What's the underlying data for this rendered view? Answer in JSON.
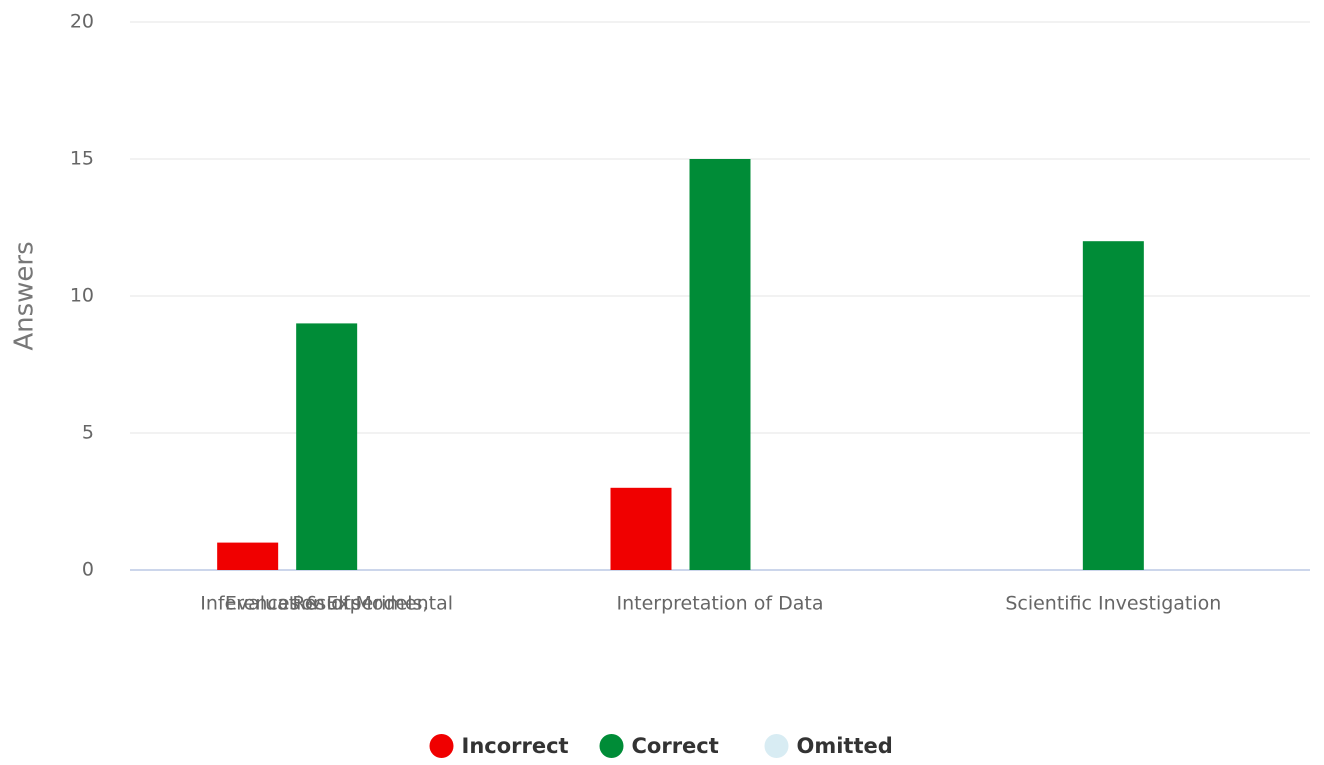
{
  "chart_data": {
    "type": "bar",
    "y_axis_label": "Answers",
    "categories": [
      [
        "Evaluation of Models,",
        "Inferences & Experimental",
        "Results"
      ],
      "Interpretation of Data",
      "Scientific Investigation"
    ],
    "series": [
      {
        "name": "Incorrect",
        "color": "#f00000",
        "values": [
          1,
          3,
          0
        ]
      },
      {
        "name": "Correct",
        "color": "#008c37",
        "values": [
          9,
          15,
          12
        ]
      },
      {
        "name": "Omitted",
        "color": "#d8ecf3",
        "values": [
          0,
          0,
          0
        ]
      }
    ],
    "ylim": [
      0,
      20
    ],
    "yticks": [
      0,
      5,
      10,
      15,
      20
    ],
    "grid": true
  }
}
